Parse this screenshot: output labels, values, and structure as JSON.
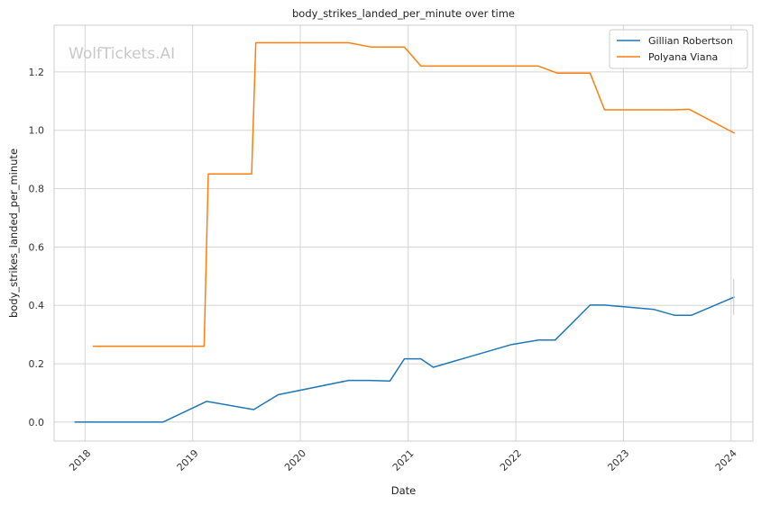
{
  "chart_data": {
    "type": "line",
    "title": "body_strikes_landed_per_minute over time",
    "xlabel": "Date",
    "ylabel": "body_strikes_landed_per_minute",
    "watermark": "WolfTickets.AI",
    "x_ticks": [
      "2018",
      "2019",
      "2020",
      "2021",
      "2022",
      "2023",
      "2024"
    ],
    "y_ticks": [
      "0.0",
      "0.2",
      "0.4",
      "0.6",
      "0.8",
      "1.0",
      "1.2"
    ],
    "xlim": [
      "2017-09-18",
      "2024-03-15"
    ],
    "ylim": [
      -0.065,
      1.36
    ],
    "grid": true,
    "legend_position": "top-right",
    "series": [
      {
        "name": "Gillian Robertson",
        "color": "#1f77b4",
        "points": [
          [
            "2017-11-26",
            0.0
          ],
          [
            "2018-09-22",
            0.0
          ],
          [
            "2019-02-17",
            0.071
          ],
          [
            "2019-07-27",
            0.043
          ],
          [
            "2019-10-18",
            0.094
          ],
          [
            "2020-06-13",
            0.143
          ],
          [
            "2020-08-22",
            0.143
          ],
          [
            "2020-10-31",
            0.141
          ],
          [
            "2020-12-19",
            0.217
          ],
          [
            "2021-02-13",
            0.217
          ],
          [
            "2021-03-27",
            0.188
          ],
          [
            "2021-12-18",
            0.266
          ],
          [
            "2022-03-19",
            0.281
          ],
          [
            "2022-05-14",
            0.281
          ],
          [
            "2022-09-10",
            0.401
          ],
          [
            "2022-10-29",
            0.401
          ],
          [
            "2023-04-15",
            0.386
          ],
          [
            "2023-06-24",
            0.366
          ],
          [
            "2023-08-19",
            0.366
          ],
          [
            "2024-01-13",
            0.429
          ]
        ]
      },
      {
        "name": "Polyana Viana",
        "color": "#ff7f0e",
        "points": [
          [
            "2018-01-27",
            0.26
          ],
          [
            "2019-02-09",
            0.26
          ],
          [
            "2019-02-23",
            0.85
          ],
          [
            "2019-07-20",
            0.85
          ],
          [
            "2019-08-03",
            1.3
          ],
          [
            "2020-06-13",
            1.3
          ],
          [
            "2020-08-29",
            1.285
          ],
          [
            "2020-12-19",
            1.285
          ],
          [
            "2021-02-13",
            1.22
          ],
          [
            "2022-03-19",
            1.22
          ],
          [
            "2022-05-21",
            1.196
          ],
          [
            "2022-09-10",
            1.196
          ],
          [
            "2022-10-29",
            1.07
          ],
          [
            "2023-06-17",
            1.07
          ],
          [
            "2023-08-12",
            1.072
          ],
          [
            "2024-01-13",
            0.99
          ]
        ]
      }
    ]
  }
}
